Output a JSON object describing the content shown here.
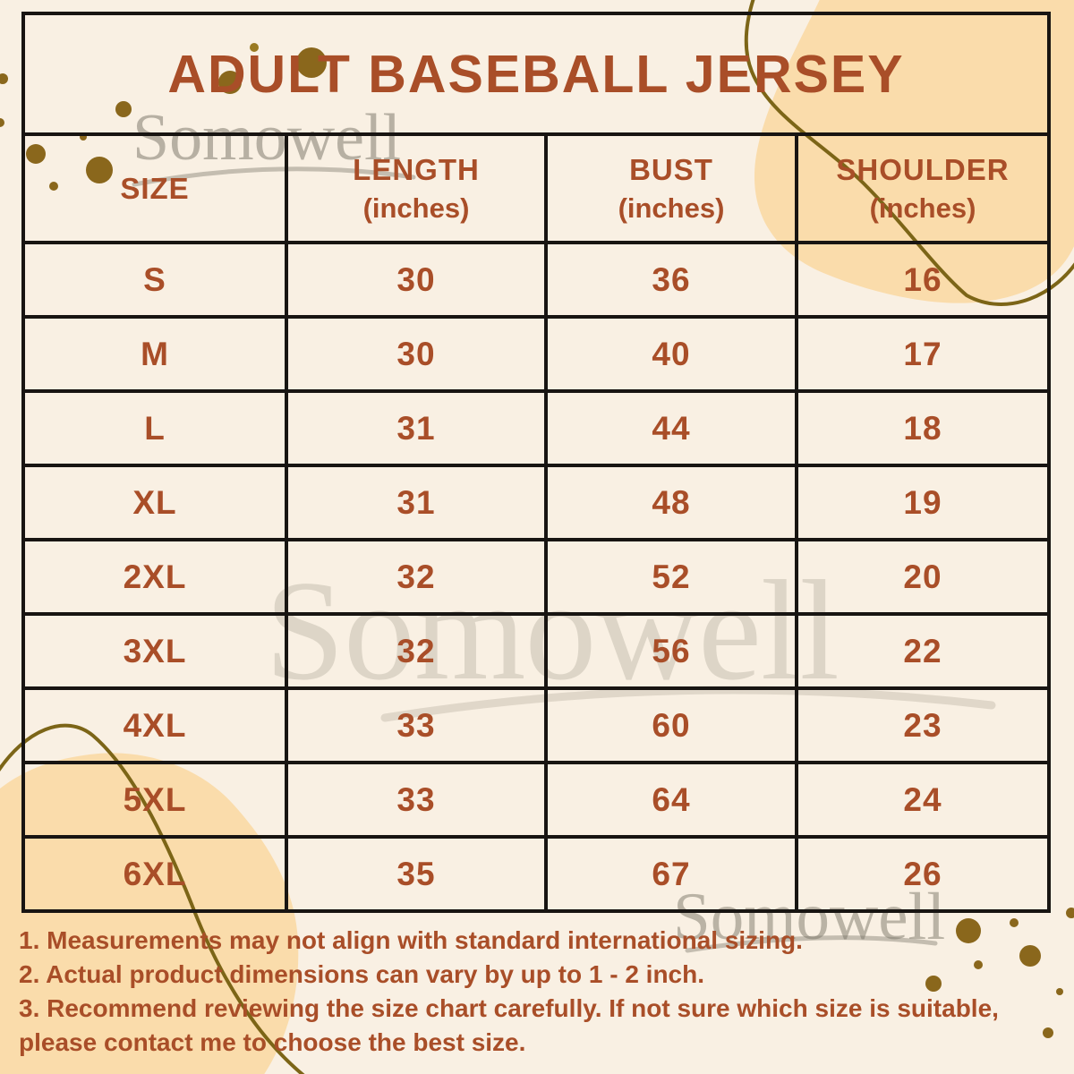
{
  "title": "ADULT BASEBALL JERSEY",
  "watermark": {
    "text": "Somowell"
  },
  "table": {
    "headers": [
      {
        "label": "SIZE",
        "sub": ""
      },
      {
        "label": "LENGTH",
        "sub": "(inches)"
      },
      {
        "label": "BUST",
        "sub": "(inches)"
      },
      {
        "label": "SHOULDER",
        "sub": "(inches)"
      }
    ],
    "rows": [
      [
        "S",
        "30",
        "36",
        "16"
      ],
      [
        "M",
        "30",
        "40",
        "17"
      ],
      [
        "L",
        "31",
        "44",
        "18"
      ],
      [
        "XL",
        "31",
        "48",
        "19"
      ],
      [
        "2XL",
        "32",
        "52",
        "20"
      ],
      [
        "3XL",
        "32",
        "56",
        "22"
      ],
      [
        "4XL",
        "33",
        "60",
        "23"
      ],
      [
        "5XL",
        "33",
        "64",
        "24"
      ],
      [
        "6XL",
        "35",
        "67",
        "26"
      ]
    ]
  },
  "notes": [
    "1. Measurements may not align with standard international sizing.",
    "2. Actual product dimensions can vary by up to 1 - 2 inch.",
    "3. Recommend reviewing the size chart carefully. If not sure which size is suitable, please contact me to choose the best size."
  ],
  "colors": {
    "background": "#f9f0e3",
    "accent_rust": "#a94e28",
    "table_border": "#181512",
    "blob_peach": "#fadcab",
    "dot_olive": "#8a671c",
    "line_olive": "#7c6517",
    "watermark_gray": "#c7c3ba"
  },
  "chart_data": {
    "type": "table",
    "title": "ADULT BASEBALL JERSEY",
    "columns": [
      "SIZE",
      "LENGTH (inches)",
      "BUST (inches)",
      "SHOULDER (inches)"
    ],
    "rows": [
      [
        "S",
        30,
        36,
        16
      ],
      [
        "M",
        30,
        40,
        17
      ],
      [
        "L",
        31,
        44,
        18
      ],
      [
        "XL",
        31,
        48,
        19
      ],
      [
        "2XL",
        32,
        52,
        20
      ],
      [
        "3XL",
        32,
        56,
        22
      ],
      [
        "4XL",
        33,
        60,
        23
      ],
      [
        "5XL",
        33,
        64,
        24
      ],
      [
        "6XL",
        35,
        67,
        26
      ]
    ],
    "notes": [
      "Measurements may not align with standard international sizing.",
      "Actual product dimensions can vary by up to 1 - 2 inch.",
      "Recommend reviewing the size chart carefully. If not sure which size is suitable, please contact me to choose the best size."
    ]
  }
}
